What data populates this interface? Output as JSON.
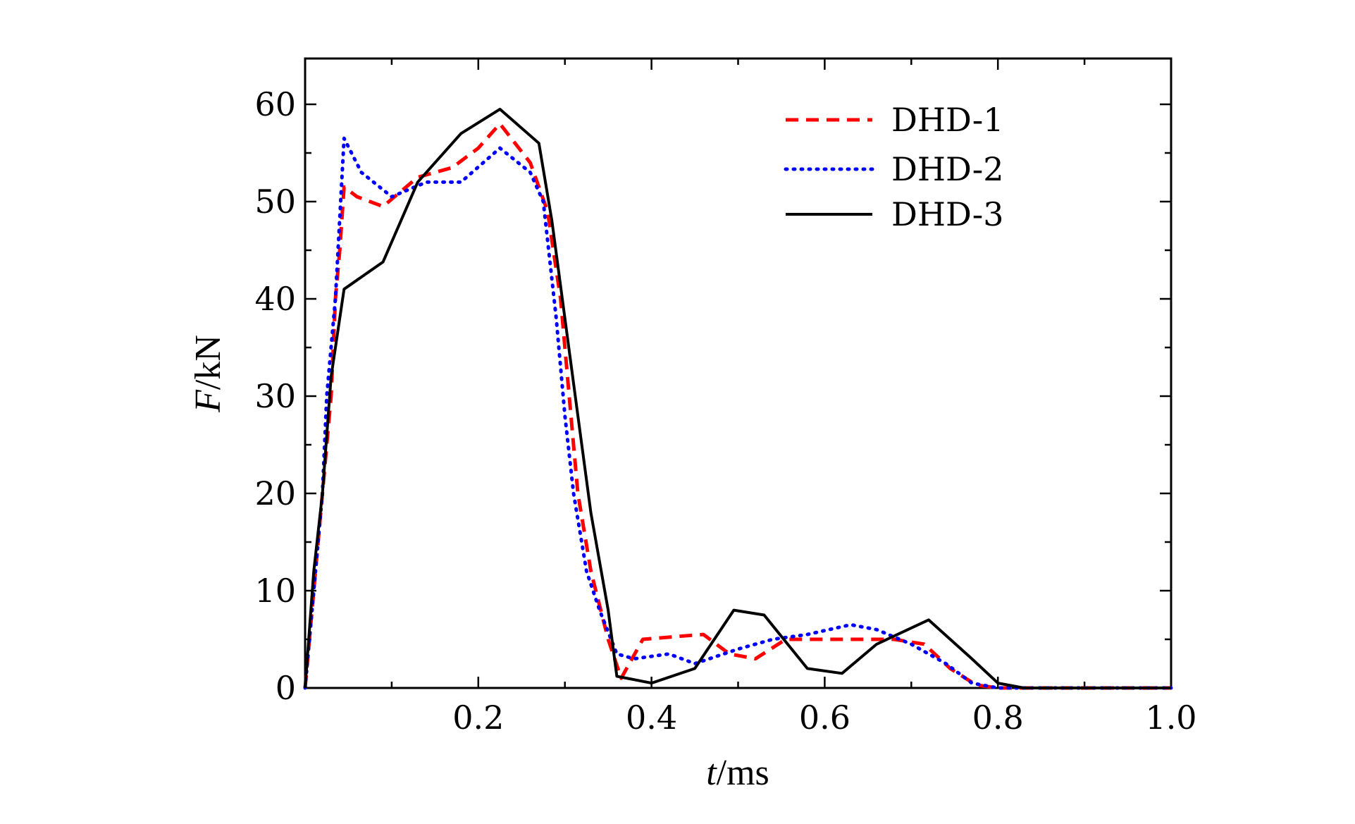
{
  "chart_data": {
    "type": "line",
    "title": "",
    "xlabel": {
      "symbol": "t",
      "unit": "/ms"
    },
    "ylabel": {
      "symbol": "F",
      "unit": "/kN"
    },
    "xlim": [
      0,
      1.0
    ],
    "ylim": [
      0,
      65
    ],
    "x_ticks": [
      "0.2",
      "0.4",
      "0.6",
      "0.8",
      "1.0"
    ],
    "y_ticks": [
      "0",
      "10",
      "20",
      "30",
      "40",
      "50",
      "60"
    ],
    "grid": false,
    "legend_position": "top-right",
    "series": [
      {
        "name": "DHD-1",
        "color": "#ff0000",
        "style": "dashed",
        "points": [
          [
            0,
            0
          ],
          [
            0.01,
            10
          ],
          [
            0.02,
            20
          ],
          [
            0.03,
            30
          ],
          [
            0.035,
            40
          ],
          [
            0.04,
            45
          ],
          [
            0.045,
            51.5
          ],
          [
            0.06,
            50.5
          ],
          [
            0.09,
            49.5
          ],
          [
            0.13,
            52.5
          ],
          [
            0.17,
            53.5
          ],
          [
            0.2,
            55.5
          ],
          [
            0.225,
            58
          ],
          [
            0.26,
            54
          ],
          [
            0.28,
            49
          ],
          [
            0.295,
            40
          ],
          [
            0.305,
            30
          ],
          [
            0.315,
            20
          ],
          [
            0.33,
            12
          ],
          [
            0.35,
            5
          ],
          [
            0.365,
            1
          ],
          [
            0.39,
            5
          ],
          [
            0.43,
            5.3
          ],
          [
            0.46,
            5.5
          ],
          [
            0.49,
            3.5
          ],
          [
            0.52,
            3
          ],
          [
            0.555,
            5
          ],
          [
            0.6,
            5
          ],
          [
            0.68,
            5
          ],
          [
            0.715,
            4.5
          ],
          [
            0.745,
            2
          ],
          [
            0.775,
            0.3
          ],
          [
            0.8,
            0
          ],
          [
            1.0,
            0
          ]
        ]
      },
      {
        "name": "DHD-2",
        "color": "#0000ff",
        "style": "dotted",
        "points": [
          [
            0,
            0
          ],
          [
            0.01,
            10
          ],
          [
            0.02,
            20
          ],
          [
            0.025,
            30
          ],
          [
            0.035,
            40
          ],
          [
            0.045,
            56.5
          ],
          [
            0.065,
            53
          ],
          [
            0.1,
            50.5
          ],
          [
            0.14,
            52
          ],
          [
            0.18,
            52
          ],
          [
            0.225,
            55.5
          ],
          [
            0.26,
            53
          ],
          [
            0.275,
            50
          ],
          [
            0.29,
            38
          ],
          [
            0.3,
            28
          ],
          [
            0.31,
            20
          ],
          [
            0.325,
            12
          ],
          [
            0.34,
            8
          ],
          [
            0.36,
            3.5
          ],
          [
            0.38,
            3
          ],
          [
            0.42,
            3.5
          ],
          [
            0.45,
            2.5
          ],
          [
            0.5,
            4
          ],
          [
            0.54,
            5
          ],
          [
            0.58,
            5.5
          ],
          [
            0.63,
            6.5
          ],
          [
            0.66,
            6
          ],
          [
            0.7,
            4.5
          ],
          [
            0.74,
            2.5
          ],
          [
            0.77,
            0.5
          ],
          [
            0.8,
            0
          ],
          [
            1.0,
            0
          ]
        ]
      },
      {
        "name": "DHD-3",
        "color": "#000000",
        "style": "solid",
        "points": [
          [
            0,
            0
          ],
          [
            0.01,
            12
          ],
          [
            0.02,
            20
          ],
          [
            0.03,
            32
          ],
          [
            0.045,
            41
          ],
          [
            0.09,
            43.8
          ],
          [
            0.13,
            52
          ],
          [
            0.18,
            57
          ],
          [
            0.225,
            59.5
          ],
          [
            0.27,
            56
          ],
          [
            0.285,
            48
          ],
          [
            0.3,
            38
          ],
          [
            0.315,
            28
          ],
          [
            0.33,
            18
          ],
          [
            0.35,
            8
          ],
          [
            0.36,
            1.2
          ],
          [
            0.4,
            0.5
          ],
          [
            0.45,
            2
          ],
          [
            0.495,
            8
          ],
          [
            0.53,
            7.5
          ],
          [
            0.58,
            2
          ],
          [
            0.62,
            1.5
          ],
          [
            0.66,
            4.5
          ],
          [
            0.72,
            7
          ],
          [
            0.77,
            3
          ],
          [
            0.8,
            0.5
          ],
          [
            0.83,
            0
          ],
          [
            1.0,
            0
          ]
        ]
      }
    ]
  }
}
